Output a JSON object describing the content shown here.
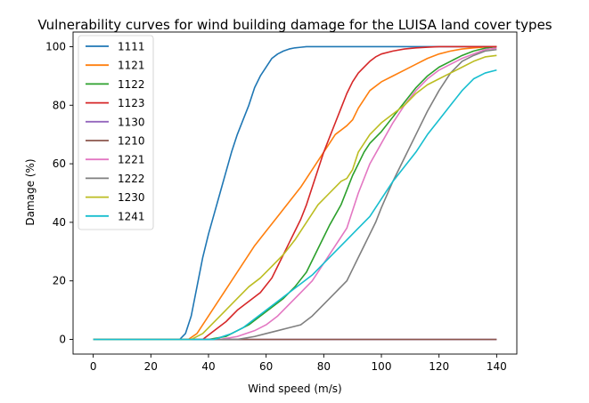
{
  "chart_data": {
    "type": "line",
    "title": "Vulnerability curves for wind building damage for the LUISA land cover types",
    "xlabel": "Wind speed (m/s)",
    "ylabel": "Damage (%)",
    "xlim": [
      -7,
      147
    ],
    "ylim": [
      -5,
      105
    ],
    "xticks": [
      0,
      20,
      40,
      60,
      80,
      100,
      120,
      140
    ],
    "yticks": [
      0,
      20,
      40,
      60,
      80,
      100
    ],
    "grid": false,
    "legend_position": "top-left",
    "series": [
      {
        "name": "1111",
        "color": "#1f77b4",
        "x": [
          0,
          30,
          32,
          34,
          36,
          38,
          40,
          42,
          44,
          46,
          48,
          50,
          52,
          54,
          56,
          58,
          60,
          62,
          64,
          66,
          68,
          70,
          72,
          74,
          76,
          80,
          90,
          140
        ],
        "y": [
          0,
          0,
          2,
          8,
          18,
          28,
          36,
          43,
          50,
          57,
          64,
          70,
          75,
          80,
          86,
          90,
          93,
          96,
          97.5,
          98.5,
          99.2,
          99.6,
          99.8,
          100,
          100,
          100,
          100,
          100
        ]
      },
      {
        "name": "1121",
        "color": "#ff7f0e",
        "x": [
          0,
          33,
          36,
          40,
          44,
          48,
          52,
          56,
          60,
          64,
          68,
          72,
          76,
          80,
          84,
          88,
          90,
          92,
          96,
          100,
          104,
          108,
          112,
          116,
          120,
          124,
          128,
          132,
          136,
          140
        ],
        "y": [
          0,
          0,
          2,
          8,
          14,
          20,
          26,
          32,
          37,
          42,
          47,
          52,
          58,
          64,
          70,
          73,
          75,
          79,
          85,
          88,
          90,
          92,
          94,
          96,
          97.5,
          98.5,
          99.2,
          99.6,
          99.9,
          100
        ]
      },
      {
        "name": "1122",
        "color": "#2ca02c",
        "x": [
          0,
          40,
          46,
          50,
          54,
          58,
          62,
          66,
          70,
          74,
          78,
          82,
          86,
          90,
          92,
          94,
          96,
          100,
          104,
          108,
          112,
          116,
          120,
          124,
          128,
          132,
          136,
          140
        ],
        "y": [
          0,
          0,
          1,
          3,
          5,
          8,
          11,
          14,
          18,
          23,
          31,
          39,
          46,
          56,
          60,
          64,
          67,
          71,
          76,
          81,
          86,
          90,
          93,
          95,
          97,
          98.5,
          99.5,
          100
        ]
      },
      {
        "name": "1123",
        "color": "#d62728",
        "x": [
          0,
          38,
          42,
          46,
          50,
          54,
          58,
          62,
          64,
          66,
          68,
          70,
          72,
          74,
          76,
          78,
          80,
          82,
          84,
          86,
          88,
          90,
          92,
          94,
          96,
          98,
          100,
          104,
          108,
          112,
          116,
          120,
          124,
          128,
          132,
          136,
          140
        ],
        "y": [
          0,
          0,
          3,
          6,
          10,
          13,
          16,
          21,
          25,
          29,
          33,
          37,
          41,
          46,
          52,
          58,
          64,
          69,
          74,
          79,
          84,
          88,
          91,
          93,
          95,
          96.5,
          97.5,
          98.5,
          99.2,
          99.6,
          99.8,
          100,
          100,
          100,
          100,
          100,
          100
        ]
      },
      {
        "name": "1130",
        "color": "#9467bd",
        "x": [
          0,
          140
        ],
        "y": [
          0,
          0
        ]
      },
      {
        "name": "1210",
        "color": "#8c564b",
        "x": [
          0,
          140
        ],
        "y": [
          0,
          0
        ]
      },
      {
        "name": "1221",
        "color": "#e377c2",
        "x": [
          0,
          44,
          50,
          56,
          60,
          64,
          68,
          72,
          76,
          80,
          84,
          88,
          90,
          92,
          96,
          100,
          104,
          108,
          112,
          116,
          120,
          124,
          128,
          132,
          136,
          140
        ],
        "y": [
          0,
          0,
          1,
          3,
          5,
          8,
          12,
          16,
          20,
          26,
          32,
          38,
          44,
          50,
          60,
          67,
          74,
          80,
          85,
          89,
          92,
          94,
          96,
          97.5,
          99,
          99.5
        ]
      },
      {
        "name": "1222",
        "color": "#7f7f7f",
        "x": [
          0,
          50,
          56,
          60,
          64,
          68,
          72,
          76,
          80,
          84,
          88,
          90,
          92,
          94,
          96,
          98,
          100,
          104,
          108,
          112,
          116,
          120,
          124,
          128,
          132,
          136,
          140
        ],
        "y": [
          0,
          0,
          1,
          2,
          3,
          4,
          5,
          8,
          12,
          16,
          20,
          24,
          28,
          32,
          36,
          40,
          45,
          54,
          62,
          70,
          78,
          85,
          91,
          95,
          97,
          98.5,
          99
        ]
      },
      {
        "name": "1230",
        "color": "#bcbd22",
        "x": [
          0,
          34,
          38,
          42,
          46,
          50,
          54,
          58,
          62,
          66,
          70,
          74,
          78,
          82,
          84,
          86,
          88,
          90,
          92,
          96,
          100,
          104,
          108,
          112,
          116,
          120,
          124,
          128,
          132,
          136,
          140
        ],
        "y": [
          0,
          0,
          2,
          6,
          10,
          14,
          18,
          21,
          25,
          29,
          34,
          40,
          46,
          50,
          52,
          54,
          55,
          58,
          64,
          70,
          74,
          77,
          80,
          84,
          87,
          89,
          91,
          93,
          95,
          96.5,
          97
        ]
      },
      {
        "name": "1241",
        "color": "#17becf",
        "x": [
          0,
          42,
          48,
          52,
          56,
          60,
          64,
          68,
          72,
          76,
          80,
          84,
          88,
          92,
          96,
          100,
          104,
          108,
          112,
          116,
          120,
          124,
          128,
          132,
          136,
          140
        ],
        "y": [
          0,
          0,
          2,
          4,
          7,
          10,
          13,
          16,
          19,
          22,
          26,
          30,
          34,
          38,
          42,
          48,
          54,
          59,
          64,
          70,
          75,
          80,
          85,
          89,
          91,
          92
        ]
      }
    ]
  }
}
